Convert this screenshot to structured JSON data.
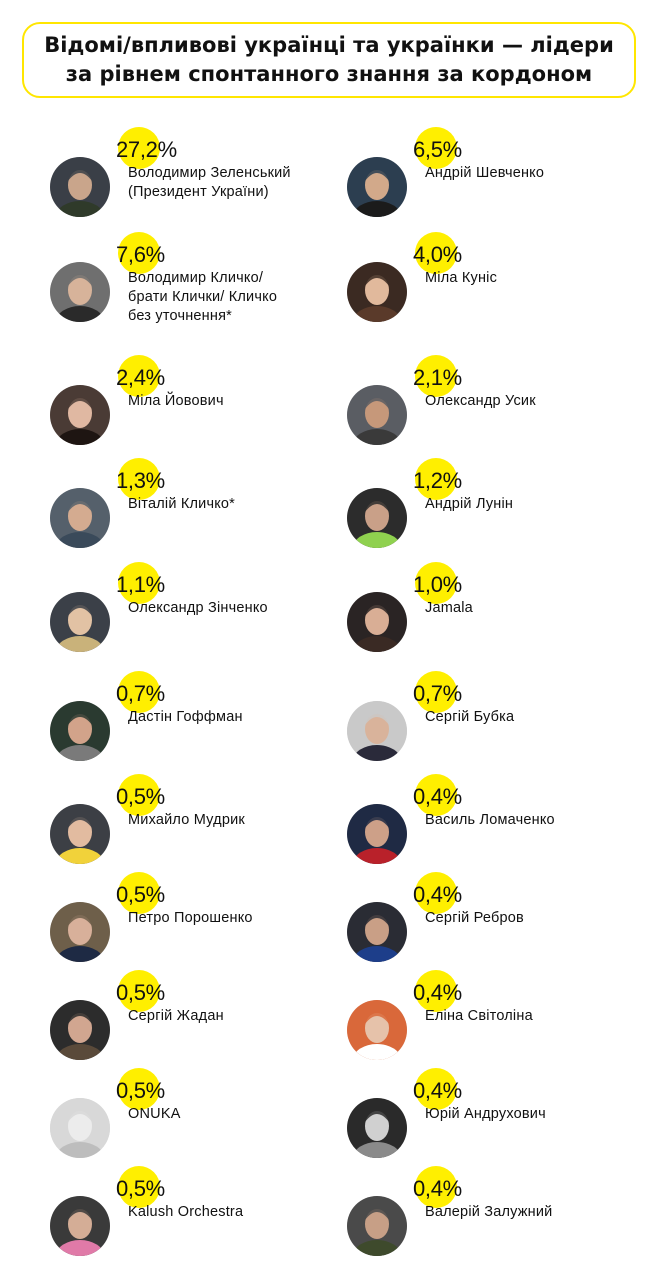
{
  "title": "Відомі/впливові українці та українки — лідери\nза рівнем спонтанного знання за кордоном",
  "accent_color": "#ffe600",
  "people": [
    {
      "percent": "27,2%",
      "name": "Володимир Зеленський\n(Президент України)",
      "avatar_icon": "person-photo-icon"
    },
    {
      "percent": "6,5%",
      "name": "Андрій Шевченко",
      "avatar_icon": "person-photo-icon"
    },
    {
      "percent": "7,6%",
      "name": "Володимир Кличко/\nбрати Клички/ Кличко\nбез уточнення*",
      "avatar_icon": "person-photo-icon"
    },
    {
      "percent": "4,0%",
      "name": "Міла Куніс",
      "avatar_icon": "person-photo-icon"
    },
    {
      "percent": "2,4%",
      "name": "Міла Йовович",
      "avatar_icon": "person-photo-icon"
    },
    {
      "percent": "2,1%",
      "name": "Олександр Усик",
      "avatar_icon": "person-photo-icon"
    },
    {
      "percent": "1,3%",
      "name": "Віталій Кличко*",
      "avatar_icon": "person-photo-icon"
    },
    {
      "percent": "1,2%",
      "name": "Андрій Лунін",
      "avatar_icon": "person-photo-icon"
    },
    {
      "percent": "1,1%",
      "name": "Олександр Зінченко",
      "avatar_icon": "person-photo-icon"
    },
    {
      "percent": "1,0%",
      "name": "Jamala",
      "avatar_icon": "person-photo-icon"
    },
    {
      "percent": "0,7%",
      "name": "Дастін Гоффман",
      "avatar_icon": "person-photo-icon"
    },
    {
      "percent": "0,7%",
      "name": "Сергій Бубка",
      "avatar_icon": "person-photo-icon"
    },
    {
      "percent": "0,5%",
      "name": "Михайло Мудрик",
      "avatar_icon": "person-photo-icon"
    },
    {
      "percent": "0,4%",
      "name": "Василь Ломаченко",
      "avatar_icon": "person-photo-icon"
    },
    {
      "percent": "0,5%",
      "name": "Петро Порошенко",
      "avatar_icon": "person-photo-icon"
    },
    {
      "percent": "0,4%",
      "name": "Сергій Ребров",
      "avatar_icon": "person-photo-icon"
    },
    {
      "percent": "0,5%",
      "name": "Сергій Жадан",
      "avatar_icon": "person-photo-icon"
    },
    {
      "percent": "0,4%",
      "name": "Еліна Світоліна",
      "avatar_icon": "person-photo-icon"
    },
    {
      "percent": "0,5%",
      "name": "ONUKA",
      "avatar_icon": "person-photo-icon"
    },
    {
      "percent": "0,4%",
      "name": "Юрій Андрухович",
      "avatar_icon": "person-photo-icon"
    },
    {
      "percent": "0,5%",
      "name": "Kalush Orchestra",
      "avatar_icon": "person-photo-icon"
    },
    {
      "percent": "0,4%",
      "name": "Валерій Залужний",
      "avatar_icon": "person-photo-icon"
    }
  ]
}
